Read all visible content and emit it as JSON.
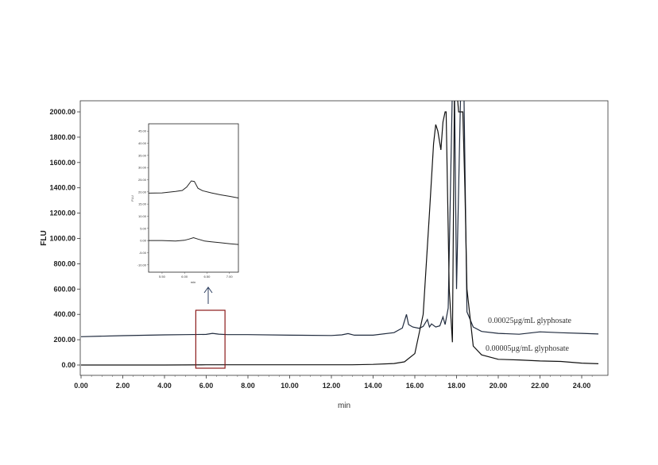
{
  "chart_data": {
    "type": "line",
    "title": "",
    "xlabel": "min",
    "ylabel": "FLU",
    "xlim": [
      0,
      25
    ],
    "ylim": [
      -100,
      2100
    ],
    "x_ticks": [
      "0.00",
      "2.00",
      "4.00",
      "6.00",
      "8.00",
      "10.00",
      "12.00",
      "14.00",
      "16.00",
      "18.00",
      "20.00",
      "22.00",
      "24.00"
    ],
    "y_ticks": [
      "0.00",
      "200.00",
      "400.00",
      "600.00",
      "800.00",
      "1000.00",
      "1200.00",
      "1400.00",
      "1600.00",
      "1800.00",
      "2000.00"
    ],
    "series": [
      {
        "name": "0.00025μg/mL glyphosate",
        "color": "#1f2a3d",
        "x": [
          0,
          2,
          4,
          5,
          6,
          6.3,
          6.6,
          7,
          8,
          10,
          12,
          12.5,
          12.8,
          13.1,
          14,
          15,
          15.4,
          15.6,
          15.7,
          15.9,
          16.2,
          16.4,
          16.6,
          16.7,
          16.8,
          17.0,
          17.2,
          17.35,
          17.45,
          17.6,
          17.8,
          17.9,
          18.0,
          18.2,
          18.35,
          18.5,
          18.8,
          19.2,
          20,
          21,
          22,
          23,
          24,
          24.8
        ],
        "y": [
          224,
          232,
          238,
          240,
          242,
          250,
          244,
          240,
          240,
          236,
          233,
          238,
          248,
          236,
          236,
          256,
          292,
          400,
          320,
          300,
          290,
          305,
          360,
          300,
          325,
          300,
          310,
          380,
          320,
          450,
          2200,
          2200,
          600,
          2200,
          2200,
          420,
          300,
          265,
          250,
          243,
          262,
          255,
          250,
          245
        ]
      },
      {
        "name": "0.00005μg/mL glyphosate",
        "color": "#111111",
        "x": [
          0,
          2,
          4,
          6,
          8,
          10,
          12,
          13,
          14,
          15,
          15.5,
          16,
          16.4,
          16.7,
          16.9,
          17.0,
          17.1,
          17.25,
          17.35,
          17.45,
          17.5,
          17.65,
          17.8,
          17.9,
          18.0,
          18.1,
          18.2,
          18.3,
          18.4,
          18.5,
          18.8,
          19.2,
          20,
          21,
          22,
          23,
          24,
          24.8
        ],
        "y": [
          0,
          0,
          0,
          2,
          2,
          2,
          2,
          2,
          5,
          12,
          25,
          90,
          400,
          1200,
          1750,
          1900,
          1850,
          1700,
          1920,
          2000,
          2000,
          600,
          180,
          2200,
          2200,
          2000,
          2000,
          2000,
          1400,
          600,
          150,
          80,
          45,
          40,
          32,
          28,
          15,
          10
        ]
      }
    ],
    "annotations": [
      "0.00025μg/mL glyphosate",
      "0.00005μg/mL glyphosate"
    ],
    "inset": {
      "xlabel": "min",
      "ylabel": "FLU",
      "x_ticks": [
        "5.50",
        "6.00",
        "6.50",
        "7.00"
      ],
      "y_ticks": [
        "45.00",
        "40.00",
        "35.00",
        "30.00",
        "25.00",
        "20.00",
        "15.00",
        "10.00",
        "5.00",
        "0.00",
        "-5.00",
        "-10.00"
      ],
      "xlim": [
        5.2,
        7.2
      ],
      "ylim": [
        -13,
        48
      ],
      "series": [
        {
          "x": [
            5.2,
            5.5,
            5.8,
            5.95,
            6.05,
            6.15,
            6.22,
            6.3,
            6.4,
            6.6,
            6.8,
            7.0,
            7.2
          ],
          "y": [
            19.5,
            19.6,
            20.2,
            20.6,
            22,
            24.5,
            24.3,
            21.5,
            20.5,
            19.6,
            18.8,
            18.2,
            17.5
          ]
        },
        {
          "x": [
            5.2,
            5.5,
            5.8,
            6.0,
            6.1,
            6.2,
            6.3,
            6.45,
            6.6,
            6.8,
            7.0,
            7.2
          ],
          "y": [
            0,
            0,
            -0.2,
            0.1,
            0.6,
            1.2,
            0.6,
            -0.2,
            -0.5,
            -0.9,
            -1.3,
            -1.6
          ]
        }
      ]
    },
    "highlight_range_x": [
      5.5,
      6.9
    ],
    "grid": false,
    "legend": "none"
  }
}
